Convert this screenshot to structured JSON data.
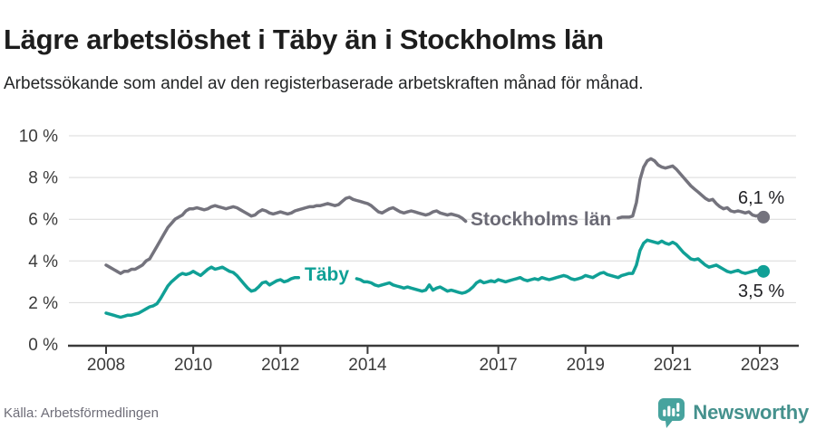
{
  "header": {
    "title": "Lägre arbetslöshet i Täby än i Stockholms län",
    "subtitle": "Arbetssökande som andel av den registerbaserade arbetskraften månad för månad."
  },
  "footer": {
    "source": "Källa: Arbetsförmedlingen",
    "brand": "Newsworthy",
    "brand_color": "#45918d",
    "brand_icon": "speech-bubble-bar-chart",
    "brand_icon_color": "#47a39e"
  },
  "chart_data": {
    "type": "line",
    "unit": "%",
    "x_start_year": 2008,
    "x_start_month": 1,
    "x_end_year": 2023,
    "x_end_month": 2,
    "points_per_year": 12,
    "ylim": [
      0,
      10
    ],
    "grid": true,
    "axis_color": "#3a3a3a",
    "grid_color": "#d9d9d9",
    "tick_label_color": "#3b3b3b",
    "y_ticks": [
      {
        "value": 0,
        "label": "0 %"
      },
      {
        "value": 2,
        "label": "2 %"
      },
      {
        "value": 4,
        "label": "4 %"
      },
      {
        "value": 6,
        "label": "6 %"
      },
      {
        "value": 8,
        "label": "8 %"
      },
      {
        "value": 10,
        "label": "10 %"
      }
    ],
    "x_ticks": [
      {
        "value": 2008,
        "label": "2008"
      },
      {
        "value": 2010,
        "label": "2010"
      },
      {
        "value": 2012,
        "label": "2012"
      },
      {
        "value": 2014,
        "label": "2014"
      },
      {
        "value": 2017,
        "label": "2017"
      },
      {
        "value": 2019,
        "label": "2019"
      },
      {
        "value": 2021,
        "label": "2021"
      },
      {
        "value": 2023,
        "label": "2023"
      }
    ],
    "series": [
      {
        "id": "stockholms-lan",
        "name": "Stockholms län",
        "color": "#74737d",
        "label_color": "#6b6a75",
        "end_label": "6,1 %",
        "end_value": 6.1,
        "values": [
          3.8,
          3.7,
          3.6,
          3.5,
          3.4,
          3.5,
          3.5,
          3.6,
          3.6,
          3.7,
          3.8,
          4.0,
          4.1,
          4.4,
          4.7,
          5.0,
          5.3,
          5.6,
          5.8,
          6.0,
          6.1,
          6.2,
          6.4,
          6.5,
          6.5,
          6.55,
          6.5,
          6.45,
          6.5,
          6.6,
          6.65,
          6.6,
          6.55,
          6.5,
          6.55,
          6.6,
          6.55,
          6.45,
          6.35,
          6.25,
          6.15,
          6.2,
          6.35,
          6.45,
          6.4,
          6.3,
          6.25,
          6.3,
          6.35,
          6.3,
          6.25,
          6.3,
          6.4,
          6.45,
          6.5,
          6.55,
          6.6,
          6.6,
          6.65,
          6.65,
          6.7,
          6.75,
          6.7,
          6.65,
          6.7,
          6.85,
          7.0,
          7.05,
          6.95,
          6.9,
          6.85,
          6.8,
          6.75,
          6.65,
          6.5,
          6.35,
          6.3,
          6.4,
          6.5,
          6.55,
          6.45,
          6.35,
          6.3,
          6.35,
          6.4,
          6.35,
          6.3,
          6.25,
          6.2,
          6.25,
          6.35,
          6.4,
          6.3,
          6.25,
          6.2,
          6.25,
          6.2,
          6.15,
          6.05,
          5.9,
          null,
          null,
          null,
          null,
          null,
          null,
          null,
          null,
          null,
          null,
          null,
          null,
          null,
          null,
          null,
          null,
          null,
          null,
          null,
          null,
          null,
          null,
          null,
          null,
          null,
          null,
          null,
          null,
          null,
          null,
          null,
          null,
          null,
          null,
          null,
          null,
          null,
          null,
          null,
          null,
          null,
          6.05,
          6.1,
          6.1,
          6.1,
          6.15,
          6.8,
          7.9,
          8.5,
          8.8,
          8.9,
          8.8,
          8.6,
          8.5,
          8.45,
          8.5,
          8.55,
          8.4,
          8.2,
          8.0,
          7.8,
          7.6,
          7.45,
          7.3,
          7.15,
          7.0,
          6.9,
          6.95,
          6.75,
          6.6,
          6.5,
          6.55,
          6.4,
          6.35,
          6.4,
          6.35,
          6.3,
          6.35,
          6.2,
          6.15,
          6.2,
          6.1
        ]
      },
      {
        "id": "taby",
        "name": "Täby",
        "color": "#10a096",
        "label_color": "#0fa096",
        "end_label": "3,5 %",
        "end_value": 3.5,
        "values": [
          1.5,
          1.45,
          1.4,
          1.35,
          1.3,
          1.35,
          1.4,
          1.4,
          1.45,
          1.5,
          1.6,
          1.7,
          1.8,
          1.85,
          1.95,
          2.2,
          2.5,
          2.8,
          3.0,
          3.15,
          3.3,
          3.4,
          3.35,
          3.4,
          3.5,
          3.4,
          3.3,
          3.45,
          3.6,
          3.7,
          3.6,
          3.65,
          3.7,
          3.6,
          3.5,
          3.45,
          3.3,
          3.1,
          2.9,
          2.7,
          2.55,
          2.6,
          2.75,
          2.95,
          3.0,
          2.85,
          2.95,
          3.05,
          3.1,
          3.0,
          3.05,
          3.15,
          3.2,
          3.2,
          null,
          null,
          null,
          null,
          null,
          null,
          null,
          null,
          null,
          null,
          null,
          null,
          null,
          null,
          null,
          3.15,
          3.1,
          3.0,
          3.0,
          2.95,
          2.85,
          2.8,
          2.85,
          2.9,
          2.95,
          2.85,
          2.8,
          2.75,
          2.7,
          2.75,
          2.7,
          2.65,
          2.6,
          2.55,
          2.6,
          2.85,
          2.6,
          2.7,
          2.75,
          2.65,
          2.55,
          2.6,
          2.55,
          2.5,
          2.45,
          2.5,
          2.6,
          2.75,
          2.95,
          3.05,
          2.95,
          3.0,
          3.05,
          3.0,
          3.1,
          3.05,
          3.0,
          3.05,
          3.1,
          3.15,
          3.2,
          3.1,
          3.05,
          3.1,
          3.15,
          3.1,
          3.2,
          3.15,
          3.1,
          3.15,
          3.2,
          3.25,
          3.3,
          3.25,
          3.15,
          3.1,
          3.15,
          3.2,
          3.3,
          3.25,
          3.2,
          3.3,
          3.4,
          3.45,
          3.35,
          3.3,
          3.25,
          3.2,
          3.3,
          3.35,
          3.4,
          3.4,
          3.8,
          4.5,
          4.85,
          5.0,
          4.95,
          4.9,
          4.85,
          4.95,
          4.85,
          4.8,
          4.9,
          4.8,
          4.6,
          4.4,
          4.25,
          4.1,
          4.05,
          4.1,
          3.95,
          3.8,
          3.7,
          3.75,
          3.8,
          3.7,
          3.6,
          3.5,
          3.45,
          3.5,
          3.55,
          3.45,
          3.4,
          3.45,
          3.5,
          3.55,
          3.55,
          3.5
        ]
      }
    ]
  }
}
